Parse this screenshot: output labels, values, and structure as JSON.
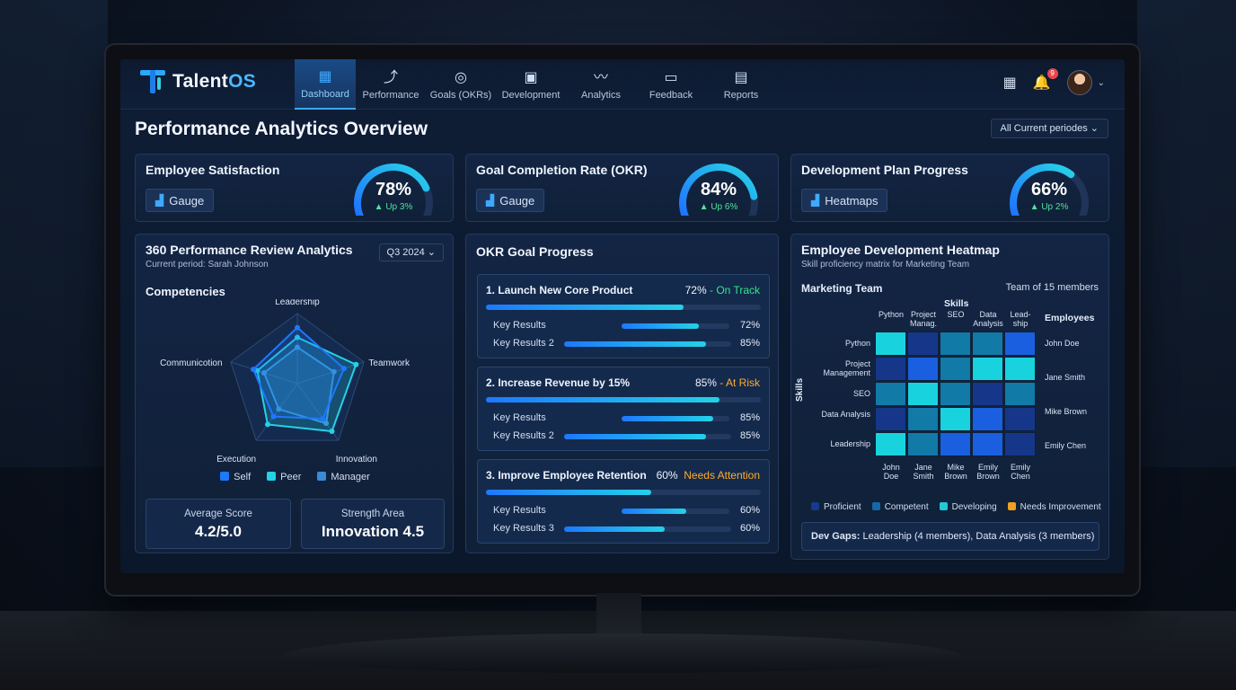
{
  "brand": {
    "name_a": "Talent",
    "name_b": "OS"
  },
  "nav": {
    "tabs": [
      {
        "label": "Dashboard",
        "icon": "dashboard-grid-icon",
        "glyph": "▦",
        "active": true
      },
      {
        "label": "Performance",
        "icon": "performance-chart-icon",
        "glyph": "⤴"
      },
      {
        "label": "Goals (OKRs)",
        "icon": "target-icon",
        "glyph": "◎"
      },
      {
        "label": "Development",
        "icon": "briefcase-icon",
        "glyph": "▣"
      },
      {
        "label": "Analytics",
        "icon": "trend-line-icon",
        "glyph": "〰"
      },
      {
        "label": "Feedback",
        "icon": "chat-bubble-icon",
        "glyph": "▭"
      },
      {
        "label": "Reports",
        "icon": "document-icon",
        "glyph": "▤"
      }
    ],
    "calendar_glyph": "▦",
    "bell_glyph": "🔔",
    "notification_count": "9",
    "caret": "⌄"
  },
  "header": {
    "title": "Performance Analytics Overview",
    "period": "All Current periodes ⌄"
  },
  "kpis": [
    {
      "title": "Employee Satisfaction",
      "pill": "Gauge",
      "pill_icon": "gauge-chart-icon",
      "value": "78%",
      "delta": "▲ Up 3%",
      "fraction": 0.78
    },
    {
      "title": "Goal Completion Rate (OKR)",
      "pill": "Gauge",
      "pill_icon": "target-icon",
      "value": "84%",
      "delta": "▲ Up 6%",
      "fraction": 0.84
    },
    {
      "title": "Development Plan Progress",
      "pill": "Heatmaps",
      "pill_icon": "bar-chart-icon",
      "value": "66%",
      "delta": "▲ Up 2%",
      "fraction": 0.66
    }
  ],
  "review": {
    "title": "360 Performance Review Analytics",
    "subtitle": "Current period: Sarah Johnson",
    "period": "Q3 2024 ⌄",
    "section": "Competencies",
    "legend": [
      "Self",
      "Peer",
      "Manager"
    ],
    "stats": [
      {
        "label": "Average Score",
        "value": "4.2/5.0"
      },
      {
        "label": "Strength Area",
        "value": "Innovation 4.5"
      }
    ]
  },
  "chart_data": {
    "type": "radar",
    "axes": [
      "Leadership",
      "Teamwork",
      "Innovation",
      "Execution",
      "Communicotion"
    ],
    "series": [
      {
        "name": "Self",
        "color": "#1e78ff",
        "values": [
          0.8,
          0.7,
          0.62,
          0.58,
          0.66
        ]
      },
      {
        "name": "Peer",
        "color": "#24d1e8",
        "values": [
          0.66,
          0.88,
          0.84,
          0.72,
          0.6
        ]
      },
      {
        "name": "Manager",
        "color": "#3a8bd6",
        "values": [
          0.52,
          0.55,
          0.7,
          0.45,
          0.5
        ]
      }
    ],
    "range": [
      0,
      1
    ],
    "grid": true
  },
  "okr": {
    "title": "OKR Goal Progress",
    "goals": [
      {
        "title": "1. Launch New Core Product",
        "pct": "72%",
        "sep": " - ",
        "status": "On Track",
        "status_color": "#36e28e",
        "progress": 0.72,
        "krs": [
          {
            "label": "Key Results",
            "value": "72%",
            "progress": 0.72
          },
          {
            "label": "Key Results 2",
            "value": "85%",
            "progress": 0.85
          }
        ]
      },
      {
        "title": "2. Increase Revenue by 15%",
        "pct": "85%",
        "sep": " - ",
        "status": "At Risk",
        "status_color": "#ffab2e",
        "progress": 0.85,
        "krs": [
          {
            "label": "Key Results",
            "value": "85%",
            "progress": 0.85
          },
          {
            "label": "Key Results 2",
            "value": "85%",
            "progress": 0.85
          }
        ]
      },
      {
        "title": "3. Improve Employee Retention",
        "pct": "60%",
        "sep": "  ",
        "status": "Needs Attention",
        "status_color": "#ffab2e",
        "progress": 0.6,
        "krs": [
          {
            "label": "Key Results",
            "value": "60%",
            "progress": 0.6
          },
          {
            "label": "Key Results 3",
            "value": "60%",
            "progress": 0.6
          }
        ]
      }
    ]
  },
  "heatmap": {
    "title": "Employee Development Heatmap",
    "subtitle": "Skill proficiency matrix for Marketing Team",
    "team": "Marketing Team",
    "team_size": "Team of 15 members",
    "skills_label": "Skills",
    "employees_label": "Employees",
    "col_labels": [
      "Python",
      "Project Manag.",
      "SEO",
      "Data Analysis",
      "Lead- ship"
    ],
    "row_labels": [
      "Python",
      "Project Management",
      "SEO",
      "Data Analysis",
      "Leadership"
    ],
    "employees": [
      "John Doe",
      "Jane Smith",
      "Mike Brown",
      "Emily Chen"
    ],
    "bottom_labels": [
      "John Doe",
      "Jane Smith",
      "Mike Brown",
      "Emily Brown",
      "Emily Chen"
    ],
    "cells": [
      [
        3,
        0,
        2,
        2,
        1
      ],
      [
        0,
        1,
        2,
        3,
        3
      ],
      [
        2,
        3,
        2,
        0,
        2
      ],
      [
        0,
        2,
        3,
        1,
        0
      ],
      [
        3,
        2,
        1,
        1,
        0
      ]
    ],
    "levels": [
      {
        "name": "Proficient",
        "color": "#153a8c"
      },
      {
        "name": "Competent",
        "color": "#1568a8"
      },
      {
        "name": "Developing",
        "color": "#1fc9d8"
      },
      {
        "name": "Needs Improvement",
        "color": "#f0a020"
      }
    ],
    "cell_colors": [
      "#16368a",
      "#1a5fe0",
      "#117aa6",
      "#18d3de"
    ],
    "gaps_label": "Dev Gaps:",
    "gaps_text": " Leadership (4 members), Data Analysis (3 members)"
  }
}
